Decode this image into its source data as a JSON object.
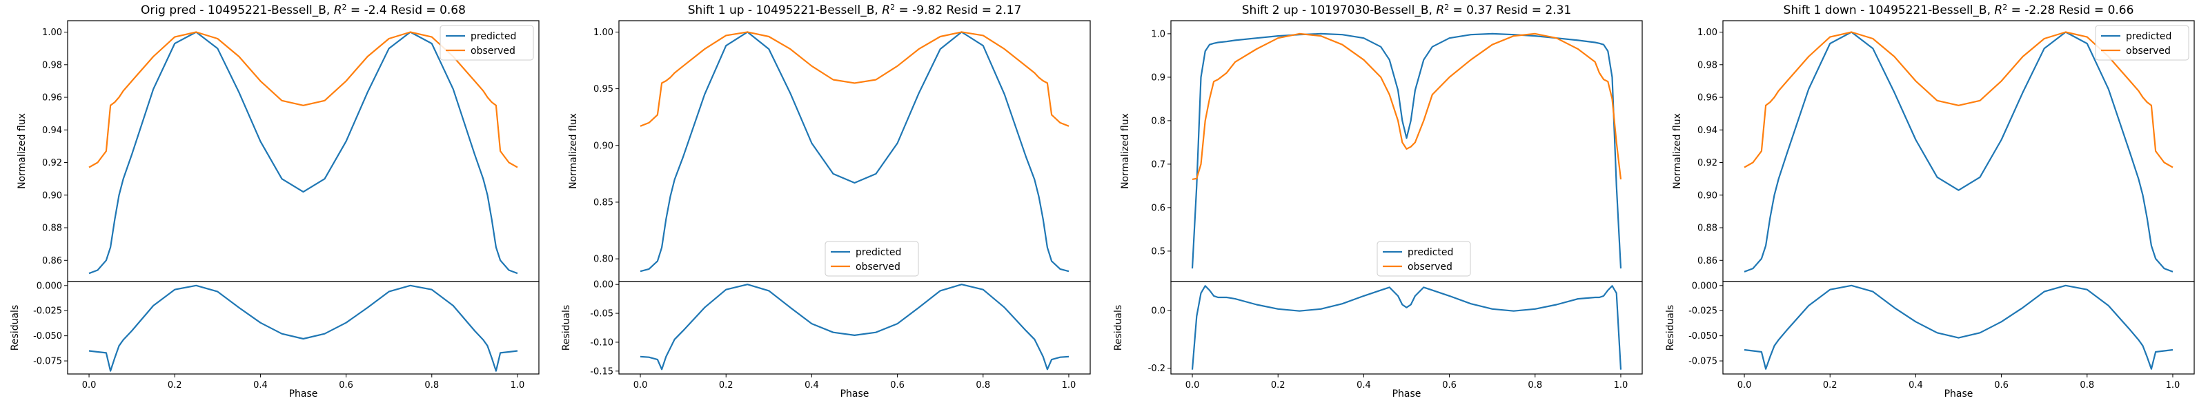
{
  "figure": {
    "colors": {
      "predicted": "#1f77b4",
      "observed": "#ff7f0e"
    }
  },
  "chart_data": [
    {
      "type": "line",
      "title": "Orig pred - 10495221-Bessell_B, R² = -2.4 Resid = 0.68",
      "title_parts": {
        "pre": "Orig pred - 10495221-Bessell_B, ",
        "r2label": "R",
        "r2sup": "2",
        "post": " = -2.4 Resid = 0.68"
      },
      "xlabel": "Phase",
      "ylabel": "Normalized flux",
      "resid_ylabel": "Residuals",
      "legend_placement": "top-right",
      "xlim": [
        -0.05,
        1.05
      ],
      "xticks": [
        "0.0",
        "0.2",
        "0.4",
        "0.6",
        "0.8",
        "1.0"
      ],
      "ylim": [
        0.847,
        1.007
      ],
      "yticks": [
        "0.86",
        "0.88",
        "0.90",
        "0.92",
        "0.94",
        "0.96",
        "0.98",
        "1.00"
      ],
      "resid_ylim": [
        -0.088,
        0.004
      ],
      "resid_yticks": [
        "0.000",
        "-0.025",
        "-0.050",
        "-0.075"
      ],
      "x": [
        0.0,
        0.02,
        0.04,
        0.05,
        0.06,
        0.07,
        0.08,
        0.1,
        0.15,
        0.2,
        0.25,
        0.3,
        0.35,
        0.4,
        0.45,
        0.5,
        0.55,
        0.6,
        0.65,
        0.7,
        0.75,
        0.8,
        0.85,
        0.9,
        0.92,
        0.93,
        0.94,
        0.95,
        0.96,
        0.98,
        1.0
      ],
      "series": [
        {
          "name": "predicted",
          "values": [
            0.852,
            0.854,
            0.86,
            0.868,
            0.885,
            0.9,
            0.91,
            0.925,
            0.965,
            0.993,
            1.0,
            0.99,
            0.963,
            0.933,
            0.91,
            0.902,
            0.91,
            0.933,
            0.963,
            0.99,
            1.0,
            0.993,
            0.965,
            0.925,
            0.91,
            0.9,
            0.885,
            0.868,
            0.86,
            0.854,
            0.852
          ]
        },
        {
          "name": "observed",
          "values": [
            0.917,
            0.92,
            0.927,
            0.955,
            0.957,
            0.96,
            0.964,
            0.97,
            0.985,
            0.997,
            1.0,
            0.996,
            0.985,
            0.97,
            0.958,
            0.955,
            0.958,
            0.97,
            0.985,
            0.996,
            1.0,
            0.997,
            0.985,
            0.97,
            0.964,
            0.96,
            0.957,
            0.955,
            0.927,
            0.92,
            0.917
          ]
        }
      ],
      "residuals": [
        -0.065,
        -0.066,
        -0.067,
        -0.085,
        -0.072,
        -0.06,
        -0.054,
        -0.045,
        -0.02,
        -0.004,
        0.0,
        -0.006,
        -0.022,
        -0.037,
        -0.048,
        -0.053,
        -0.048,
        -0.037,
        -0.022,
        -0.006,
        0.0,
        -0.004,
        -0.02,
        -0.045,
        -0.054,
        -0.06,
        -0.072,
        -0.085,
        -0.067,
        -0.066,
        -0.065
      ]
    },
    {
      "type": "line",
      "title": "Shift 1 up - 10495221-Bessell_B, R² = -9.82 Resid = 2.17",
      "title_parts": {
        "pre": "Shift 1 up - 10495221-Bessell_B, ",
        "r2label": "R",
        "r2sup": "2",
        "post": " = -9.82 Resid = 2.17"
      },
      "xlabel": "Phase",
      "ylabel": "Normalized flux",
      "resid_ylabel": "Residuals",
      "legend_placement": "bottom-center",
      "xlim": [
        -0.05,
        1.05
      ],
      "xticks": [
        "0.0",
        "0.2",
        "0.4",
        "0.6",
        "0.8",
        "1.0"
      ],
      "ylim": [
        0.78,
        1.01
      ],
      "yticks": [
        "0.80",
        "0.85",
        "0.90",
        "0.95",
        "1.00"
      ],
      "resid_ylim": [
        -0.155,
        0.005
      ],
      "resid_yticks": [
        "0.00",
        "-0.05",
        "-0.10",
        "-0.15"
      ],
      "x": [
        0.0,
        0.02,
        0.04,
        0.05,
        0.06,
        0.07,
        0.08,
        0.1,
        0.15,
        0.2,
        0.25,
        0.3,
        0.35,
        0.4,
        0.45,
        0.5,
        0.55,
        0.6,
        0.65,
        0.7,
        0.75,
        0.8,
        0.85,
        0.9,
        0.92,
        0.93,
        0.94,
        0.95,
        0.96,
        0.98,
        1.0
      ],
      "series": [
        {
          "name": "predicted",
          "values": [
            0.789,
            0.791,
            0.798,
            0.81,
            0.835,
            0.855,
            0.87,
            0.89,
            0.945,
            0.988,
            1.0,
            0.985,
            0.946,
            0.902,
            0.875,
            0.867,
            0.875,
            0.902,
            0.946,
            0.985,
            1.0,
            0.988,
            0.945,
            0.89,
            0.87,
            0.855,
            0.835,
            0.81,
            0.798,
            0.791,
            0.789
          ]
        },
        {
          "name": "observed",
          "values": [
            0.917,
            0.92,
            0.927,
            0.955,
            0.957,
            0.96,
            0.964,
            0.97,
            0.985,
            0.997,
            1.0,
            0.996,
            0.985,
            0.97,
            0.958,
            0.955,
            0.958,
            0.97,
            0.985,
            0.996,
            1.0,
            0.997,
            0.985,
            0.97,
            0.964,
            0.96,
            0.957,
            0.955,
            0.927,
            0.92,
            0.917
          ]
        }
      ],
      "residuals": [
        -0.125,
        -0.126,
        -0.13,
        -0.147,
        -0.125,
        -0.11,
        -0.095,
        -0.08,
        -0.04,
        -0.009,
        0.0,
        -0.011,
        -0.04,
        -0.068,
        -0.083,
        -0.088,
        -0.083,
        -0.068,
        -0.04,
        -0.011,
        0.0,
        -0.009,
        -0.04,
        -0.08,
        -0.095,
        -0.11,
        -0.125,
        -0.147,
        -0.13,
        -0.126,
        -0.125
      ]
    },
    {
      "type": "line",
      "title": "Shift 2 up - 10197030-Bessell_B, R² = 0.37 Resid = 2.31",
      "title_parts": {
        "pre": "Shift 2 up - 10197030-Bessell_B, ",
        "r2label": "R",
        "r2sup": "2",
        "post": " = 0.37 Resid = 2.31"
      },
      "xlabel": "Phase",
      "ylabel": "Normalized flux",
      "resid_ylabel": "Residuals",
      "legend_placement": "bottom-center",
      "xlim": [
        -0.05,
        1.05
      ],
      "xticks": [
        "0.0",
        "0.2",
        "0.4",
        "0.6",
        "0.8",
        "1.0"
      ],
      "ylim": [
        0.43,
        1.03
      ],
      "yticks": [
        "0.5",
        "0.6",
        "0.7",
        "0.8",
        "0.9",
        "1.0"
      ],
      "resid_ylim": [
        -0.22,
        0.1
      ],
      "resid_yticks": [
        "0.0",
        "-0.2"
      ],
      "x": [
        0.0,
        0.01,
        0.02,
        0.03,
        0.04,
        0.05,
        0.06,
        0.08,
        0.1,
        0.15,
        0.2,
        0.25,
        0.3,
        0.35,
        0.4,
        0.44,
        0.46,
        0.48,
        0.49,
        0.5,
        0.51,
        0.52,
        0.54,
        0.56,
        0.6,
        0.65,
        0.7,
        0.75,
        0.8,
        0.85,
        0.9,
        0.94,
        0.95,
        0.96,
        0.97,
        0.98,
        0.99,
        1.0
      ],
      "series": [
        {
          "name": "predicted",
          "values": [
            0.46,
            0.65,
            0.9,
            0.96,
            0.975,
            0.978,
            0.98,
            0.982,
            0.985,
            0.99,
            0.995,
            0.998,
            1.0,
            0.998,
            0.99,
            0.97,
            0.94,
            0.87,
            0.8,
            0.76,
            0.8,
            0.87,
            0.94,
            0.97,
            0.99,
            0.998,
            1.0,
            0.998,
            0.995,
            0.99,
            0.985,
            0.98,
            0.978,
            0.975,
            0.96,
            0.9,
            0.65,
            0.46
          ]
        },
        {
          "name": "observed",
          "values": [
            0.665,
            0.667,
            0.7,
            0.8,
            0.85,
            0.89,
            0.895,
            0.91,
            0.935,
            0.965,
            0.99,
            1.0,
            0.995,
            0.975,
            0.94,
            0.9,
            0.86,
            0.8,
            0.75,
            0.735,
            0.74,
            0.75,
            0.8,
            0.86,
            0.9,
            0.94,
            0.975,
            0.995,
            1.0,
            0.99,
            0.965,
            0.935,
            0.91,
            0.895,
            0.89,
            0.85,
            0.75,
            0.665
          ]
        }
      ],
      "residuals": [
        -0.205,
        -0.02,
        0.06,
        0.085,
        0.07,
        0.05,
        0.045,
        0.045,
        0.04,
        0.02,
        0.005,
        -0.002,
        0.005,
        0.023,
        0.05,
        0.07,
        0.08,
        0.05,
        0.02,
        0.01,
        0.02,
        0.05,
        0.08,
        0.07,
        0.05,
        0.023,
        0.005,
        -0.002,
        0.005,
        0.02,
        0.04,
        0.045,
        0.045,
        0.05,
        0.07,
        0.085,
        0.06,
        -0.205
      ]
    },
    {
      "type": "line",
      "title": "Shift 1 down - 10495221-Bessell_B, R² = -2.28 Resid = 0.66",
      "title_parts": {
        "pre": "Shift 1 down - 10495221-Bessell_B, ",
        "r2label": "R",
        "r2sup": "2",
        "post": " = -2.28 Resid = 0.66"
      },
      "xlabel": "Phase",
      "ylabel": "Normalized flux",
      "resid_ylabel": "Residuals",
      "legend_placement": "top-right",
      "xlim": [
        -0.05,
        1.05
      ],
      "xticks": [
        "0.0",
        "0.2",
        "0.4",
        "0.6",
        "0.8",
        "1.0"
      ],
      "ylim": [
        0.847,
        1.007
      ],
      "yticks": [
        "0.86",
        "0.88",
        "0.90",
        "0.92",
        "0.94",
        "0.96",
        "0.98",
        "1.00"
      ],
      "resid_ylim": [
        -0.088,
        0.004
      ],
      "resid_yticks": [
        "0.000",
        "-0.025",
        "-0.050",
        "-0.075"
      ],
      "x": [
        0.0,
        0.02,
        0.04,
        0.05,
        0.06,
        0.07,
        0.08,
        0.1,
        0.15,
        0.2,
        0.25,
        0.3,
        0.35,
        0.4,
        0.45,
        0.5,
        0.55,
        0.6,
        0.65,
        0.7,
        0.75,
        0.8,
        0.85,
        0.9,
        0.92,
        0.93,
        0.94,
        0.95,
        0.96,
        0.98,
        1.0
      ],
      "series": [
        {
          "name": "predicted",
          "values": [
            0.853,
            0.855,
            0.861,
            0.869,
            0.886,
            0.9,
            0.91,
            0.926,
            0.965,
            0.993,
            1.0,
            0.99,
            0.963,
            0.934,
            0.911,
            0.903,
            0.911,
            0.934,
            0.963,
            0.99,
            1.0,
            0.993,
            0.965,
            0.926,
            0.91,
            0.9,
            0.886,
            0.869,
            0.861,
            0.855,
            0.853
          ]
        },
        {
          "name": "observed",
          "values": [
            0.917,
            0.92,
            0.927,
            0.955,
            0.957,
            0.96,
            0.964,
            0.97,
            0.985,
            0.997,
            1.0,
            0.996,
            0.985,
            0.97,
            0.958,
            0.955,
            0.958,
            0.97,
            0.985,
            0.996,
            1.0,
            0.997,
            0.985,
            0.97,
            0.964,
            0.96,
            0.957,
            0.955,
            0.927,
            0.92,
            0.917
          ]
        }
      ],
      "residuals": [
        -0.064,
        -0.065,
        -0.066,
        -0.083,
        -0.071,
        -0.06,
        -0.054,
        -0.044,
        -0.02,
        -0.004,
        0.0,
        -0.006,
        -0.022,
        -0.036,
        -0.047,
        -0.052,
        -0.047,
        -0.036,
        -0.022,
        -0.006,
        0.0,
        -0.004,
        -0.02,
        -0.044,
        -0.054,
        -0.06,
        -0.071,
        -0.083,
        -0.066,
        -0.065,
        -0.064
      ]
    }
  ]
}
